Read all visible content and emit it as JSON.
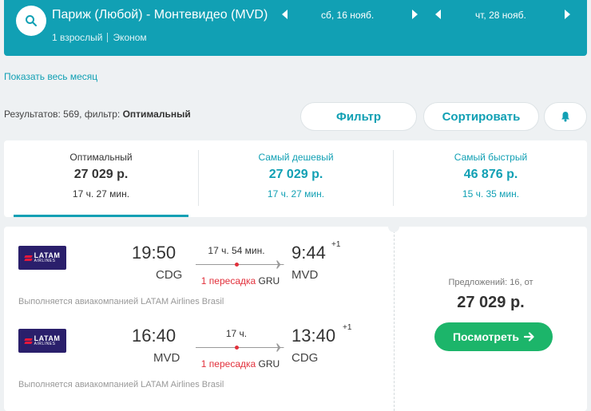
{
  "header": {
    "route": "Париж (Любой) - Монтевидео (MVD)",
    "passengers": "1 взрослый",
    "cabin": "Эконом",
    "depart_date": "сб, 16 нояб.",
    "return_date": "чт, 28 нояб."
  },
  "month_link": "Показать весь месяц",
  "results": {
    "prefix": "Результатов: 569, фильтр:",
    "filter": "Оптимальный"
  },
  "buttons": {
    "filter": "Фильтр",
    "sort": "Сортировать"
  },
  "tabs": [
    {
      "label": "Оптимальный",
      "price": "27 029 р.",
      "duration": "17 ч. 27 мин."
    },
    {
      "label": "Самый дешевый",
      "price": "27 029 р.",
      "duration": "17 ч. 27 мин."
    },
    {
      "label": "Самый быстрый",
      "price": "46 876 р.",
      "duration": "15 ч. 35 мин."
    }
  ],
  "result": {
    "airline_logo_text": "LATAM",
    "airline_logo_sub": "AIRLINES",
    "outbound": {
      "dep_time": "19:50",
      "dep_code": "CDG",
      "duration": "17 ч. 54 мин.",
      "arr_time": "9:44",
      "arr_plus": "+1",
      "arr_code": "MVD",
      "stops": "1 пересадка",
      "via": "GRU",
      "operated": "Выполняется авиакомпанией LATAM Airlines Brasil"
    },
    "inbound": {
      "dep_time": "16:40",
      "dep_code": "MVD",
      "duration": "17 ч.",
      "arr_time": "13:40",
      "arr_plus": "+1",
      "arr_code": "CDG",
      "stops": "1 пересадка",
      "via": "GRU",
      "operated": "Выполняется авиакомпанией LATAM Airlines Brasil"
    },
    "offers": "Предложений: 16, от",
    "price": "27 029 р.",
    "view_label": "Посмотреть"
  }
}
